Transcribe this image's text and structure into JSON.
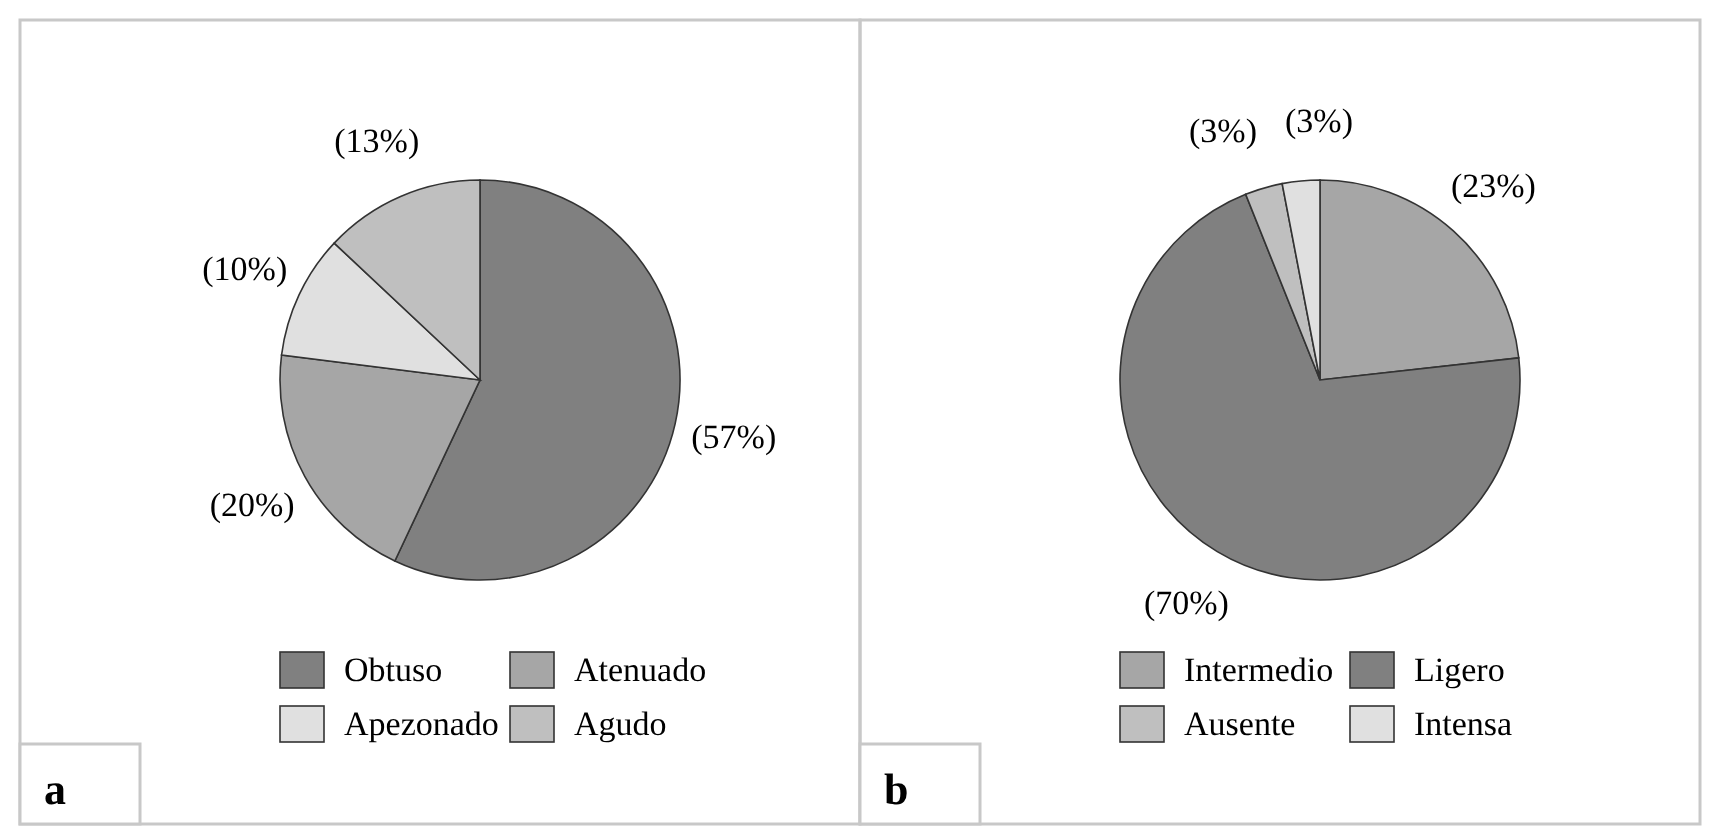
{
  "chart_data": [
    {
      "type": "pie",
      "categories": [
        "Obtuso",
        "Atenuado",
        "Apezonado",
        "Agudo"
      ],
      "values": [
        57,
        20,
        10,
        13
      ],
      "colors": [
        "#808080",
        "#a6a6a6",
        "#e0e0e0",
        "#bfbfbf"
      ],
      "value_labels": [
        "(57%)",
        "(20%)",
        "(10%)",
        "(13%)"
      ],
      "legend": "bottom",
      "annotations": [
        "a"
      ]
    },
    {
      "type": "pie",
      "categories": [
        "Intermedio",
        "Ligero",
        "Ausente",
        "Intensa"
      ],
      "values": [
        23,
        70,
        3,
        3
      ],
      "colors": [
        "#a6a6a6",
        "#808080",
        "#bfbfbf",
        "#e0e0e0"
      ],
      "value_labels": [
        "(23%)",
        "(70%)",
        "(3%)",
        "(3%)"
      ],
      "legend": "bottom",
      "annotations": [
        "b"
      ]
    }
  ]
}
